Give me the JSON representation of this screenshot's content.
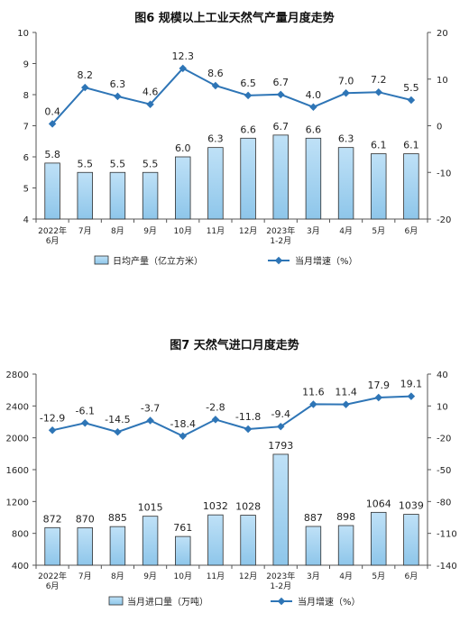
{
  "chart_data": [
    {
      "type": "bar",
      "title": "图6  规模以上工业天然气产量月度走势",
      "categories": [
        [
          "2022年",
          "6月"
        ],
        [
          "7月"
        ],
        [
          "8月"
        ],
        [
          "9月"
        ],
        [
          "10月"
        ],
        [
          "11月"
        ],
        [
          "12月"
        ],
        [
          "2023年",
          "1-2月"
        ],
        [
          "3月"
        ],
        [
          "4月"
        ],
        [
          "5月"
        ],
        [
          "6月"
        ]
      ],
      "left_axis": {
        "min": 4,
        "max": 10,
        "step": 1,
        "ticks": [
          "4",
          "5",
          "6",
          "7",
          "8",
          "9",
          "10"
        ]
      },
      "right_axis": {
        "min": -20,
        "max": 20,
        "step": 10,
        "ticks": [
          "-20",
          "-10",
          "0",
          "10",
          "20"
        ]
      },
      "series": [
        {
          "name": "日均产量（亿立方米）",
          "kind": "bar",
          "axis": "left",
          "values": [
            5.8,
            5.5,
            5.5,
            5.5,
            6.0,
            6.3,
            6.6,
            6.7,
            6.6,
            6.3,
            6.1,
            6.1
          ],
          "labels": [
            "5.8",
            "5.5",
            "5.5",
            "5.5",
            "6.0",
            "6.3",
            "6.6",
            "6.7",
            "6.6",
            "6.3",
            "6.1",
            "6.1"
          ]
        },
        {
          "name": "当月增速（%）",
          "kind": "line",
          "axis": "right",
          "values": [
            0.4,
            8.2,
            6.3,
            4.6,
            12.3,
            8.6,
            6.5,
            6.7,
            4.0,
            7.0,
            7.2,
            5.5
          ],
          "labels": [
            "0.4",
            "8.2",
            "6.3",
            "4.6",
            "12.3",
            "8.6",
            "6.5",
            "6.7",
            "4.0",
            "7.0",
            "7.2",
            "5.5"
          ]
        }
      ],
      "legend_position": "bottom",
      "colors": {
        "bar_fill_top": "#bfe1f7",
        "bar_fill_bottom": "#8ec6ea",
        "bar_stroke": "#2e2e2e",
        "line": "#2e75b6"
      }
    },
    {
      "type": "bar",
      "title": "图7  天然气进口月度走势",
      "categories": [
        [
          "2022年",
          "6月"
        ],
        [
          "7月"
        ],
        [
          "8月"
        ],
        [
          "9月"
        ],
        [
          "10月"
        ],
        [
          "11月"
        ],
        [
          "12月"
        ],
        [
          "2023年",
          "1-2月"
        ],
        [
          "3月"
        ],
        [
          "4月"
        ],
        [
          "5月"
        ],
        [
          "6月"
        ]
      ],
      "left_axis": {
        "min": 400,
        "max": 2800,
        "step": 400,
        "ticks": [
          "400",
          "800",
          "1200",
          "1600",
          "2000",
          "2400",
          "2800"
        ]
      },
      "right_axis": {
        "min": -140,
        "max": 40,
        "step": 30,
        "ticks": [
          "-140",
          "-110",
          "-80",
          "-50",
          "-20",
          "10",
          "40"
        ]
      },
      "series": [
        {
          "name": "当月进口量（万吨）",
          "kind": "bar",
          "axis": "left",
          "values": [
            872,
            870,
            885,
            1015,
            761,
            1032,
            1028,
            1793,
            887,
            898,
            1064,
            1039
          ],
          "labels": [
            "872",
            "870",
            "885",
            "1015",
            "761",
            "1032",
            "1028",
            "1793",
            "887",
            "898",
            "1064",
            "1039"
          ]
        },
        {
          "name": "当月增速（%）",
          "kind": "line",
          "axis": "right",
          "values": [
            -12.9,
            -6.1,
            -14.5,
            -3.7,
            -18.4,
            -2.8,
            -11.8,
            -9.4,
            11.6,
            11.4,
            17.9,
            19.1
          ],
          "labels": [
            "-12.9",
            "-6.1",
            "-14.5",
            "-3.7",
            "-18.4",
            "-2.8",
            "-11.8",
            "-9.4",
            "11.6",
            "11.4",
            "17.9",
            "19.1"
          ]
        }
      ],
      "legend_position": "bottom",
      "colors": {
        "bar_fill_top": "#bfe1f7",
        "bar_fill_bottom": "#8ec6ea",
        "bar_stroke": "#2e2e2e",
        "line": "#2e75b6"
      }
    }
  ]
}
